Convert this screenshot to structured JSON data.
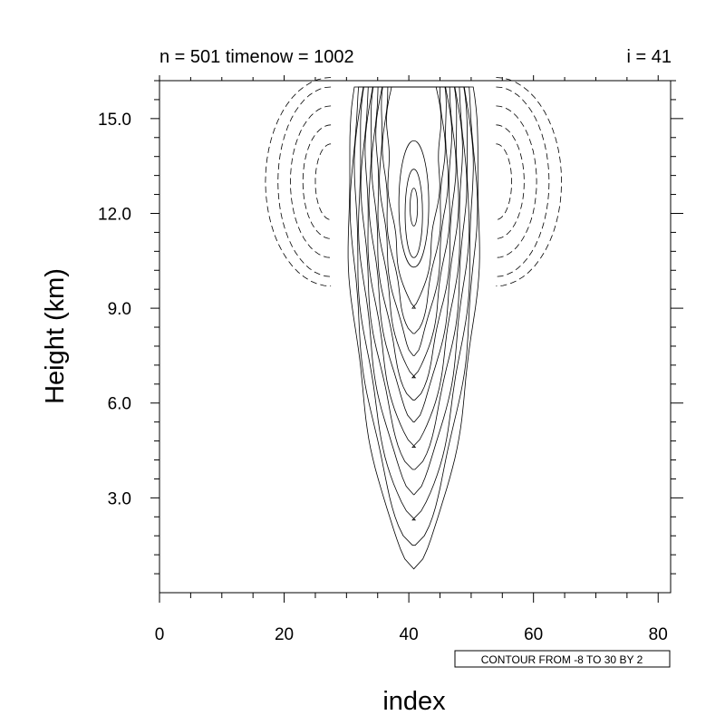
{
  "chart_data": {
    "type": "contour",
    "title_left": "n = 501 timenow = 1002",
    "title_right": "i = 41",
    "xlabel": "index",
    "ylabel": "Height (km)",
    "xlim": [
      0,
      82
    ],
    "ylim": [
      0,
      16.2
    ],
    "x_ticks": [
      0,
      20,
      40,
      60,
      80
    ],
    "y_ticks": [
      3.0,
      6.0,
      9.0,
      12.0,
      15.0
    ],
    "x_tick_labels": [
      "0",
      "20",
      "40",
      "60",
      "80"
    ],
    "y_tick_labels": [
      "3.0",
      "6.0",
      "9.0",
      "12.0",
      "15.0"
    ],
    "contour_info": "CONTOUR FROM -8 TO 30 BY 2",
    "contour_levels": {
      "min": -8,
      "max": 30,
      "step": 2
    },
    "positive_plume": {
      "center_x": 40.8,
      "nested_contours": [
        {
          "base_km": 0.75,
          "half_width": 11.0
        },
        {
          "base_km": 1.5,
          "half_width": 10.4
        },
        {
          "base_km": 2.3,
          "half_width": 9.8
        },
        {
          "base_km": 3.1,
          "half_width": 9.2
        },
        {
          "base_km": 3.9,
          "half_width": 8.6
        },
        {
          "base_km": 4.6,
          "half_width": 8.0
        },
        {
          "base_km": 5.4,
          "half_width": 7.4
        },
        {
          "base_km": 6.1,
          "half_width": 6.8
        },
        {
          "base_km": 6.8,
          "half_width": 6.2
        },
        {
          "base_km": 7.5,
          "half_width": 5.6
        },
        {
          "base_km": 8.2,
          "half_width": 5.0
        },
        {
          "base_km": 9.0,
          "half_width": 4.4
        }
      ],
      "top_km": 16.0
    },
    "negative_lobes": [
      {
        "side": "left",
        "center_x": 27.5,
        "center_y_km": 13.0,
        "dx": [
          2.5,
          4.5,
          6.5,
          8.5,
          10.5
        ],
        "dy_km": [
          1.2,
          1.8,
          2.4,
          3.0,
          3.3
        ]
      },
      {
        "side": "right",
        "center_x": 54.0,
        "center_y_km": 13.0,
        "dx": [
          2.5,
          4.5,
          6.5,
          8.5,
          10.5
        ],
        "dy_km": [
          1.2,
          1.8,
          2.4,
          3.0,
          3.3
        ]
      }
    ]
  }
}
